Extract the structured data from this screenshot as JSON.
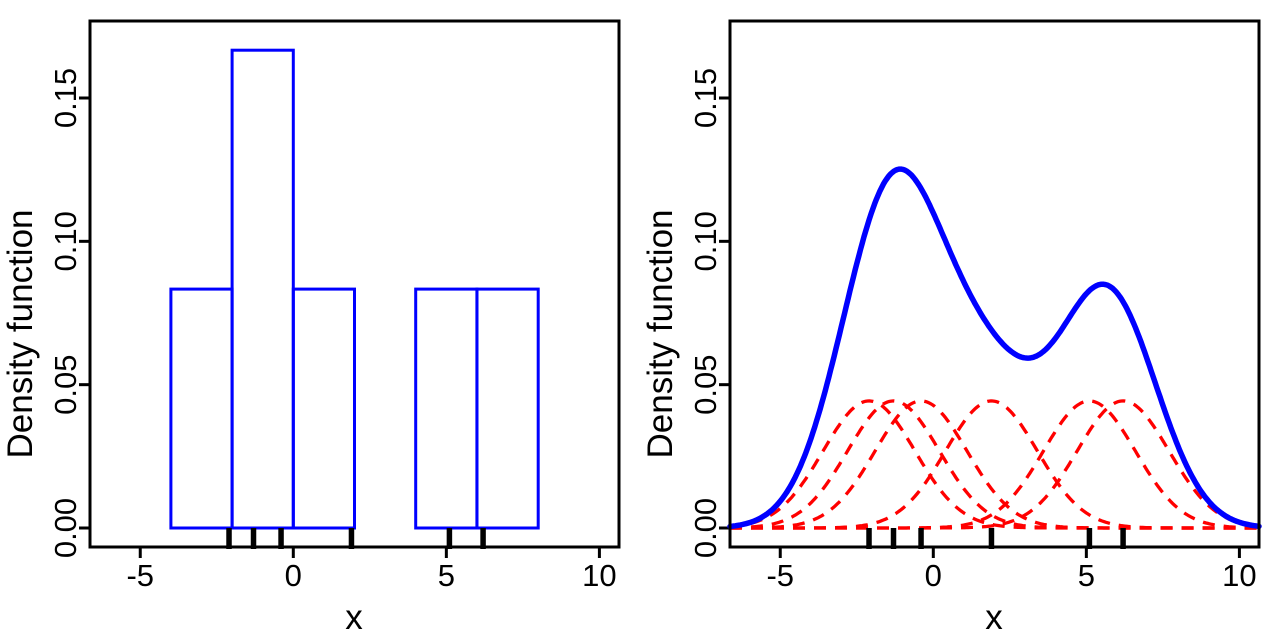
{
  "figure": {
    "background": "#ffffff",
    "axis_color": "#000000",
    "rug_color": "#000000"
  },
  "chart_data": [
    {
      "type": "bar",
      "subtype": "histogram",
      "title": "",
      "xlabel": "x",
      "ylabel": "Density function",
      "xlim": [
        -6.64,
        10.64
      ],
      "ylim": [
        -0.0068,
        0.1768
      ],
      "x_ticks": [
        -5,
        0,
        5,
        10
      ],
      "x_tick_labels": [
        "-5",
        "0",
        "5",
        "10"
      ],
      "y_ticks": [
        0,
        0.05,
        0.1,
        0.15
      ],
      "y_tick_labels": [
        "0.00",
        "0.05",
        "0.10",
        "0.15"
      ],
      "grid": "off",
      "legend": "none",
      "breaks": [
        -4,
        -2,
        0,
        2,
        4,
        6,
        8
      ],
      "densities": [
        0.08333,
        0.16667,
        0.08333,
        0,
        0.08333,
        0.08333
      ],
      "rug_points": [
        -2.1,
        -1.3,
        -0.4,
        1.9,
        5.1,
        6.2
      ],
      "colors": {
        "bar_outline": "#0000ff",
        "bar_fill": "none",
        "rug": "#000000"
      }
    },
    {
      "type": "line",
      "subtype": "kernel-density-estimate",
      "title": "",
      "xlabel": "x",
      "ylabel": "Density function",
      "xlim": [
        -6.64,
        10.64
      ],
      "ylim": [
        -0.0068,
        0.1768
      ],
      "x_ticks": [
        -5,
        0,
        5,
        10
      ],
      "x_tick_labels": [
        "-5",
        "0",
        "5",
        "10"
      ],
      "y_ticks": [
        0,
        0.05,
        0.1,
        0.15
      ],
      "y_tick_labels": [
        "0.00",
        "0.05",
        "0.10",
        "0.15"
      ],
      "grid": "off",
      "legend": "none",
      "data_points": [
        -2.1,
        -1.3,
        -0.4,
        1.9,
        5.1,
        6.2
      ],
      "kernel": "gaussian",
      "bandwidth": 1.5,
      "series": [
        {
          "name": "kde-sum",
          "color": "#0000ff",
          "style": "solid",
          "peaks": [
            {
              "x": -1.1,
              "y": 0.125
            },
            {
              "x": 5.65,
              "y": 0.085
            }
          ],
          "trough": {
            "x": 3.1,
            "y": 0.059
          }
        },
        {
          "name": "individual-kernels",
          "color": "#ff0000",
          "style": "dashed",
          "count": 6,
          "peak_height": 0.0443
        }
      ],
      "rug_points": [
        -2.1,
        -1.3,
        -0.4,
        1.9,
        5.1,
        6.2
      ],
      "colors": {
        "kde": "#0000ff",
        "kernels": "#ff0000",
        "rug": "#000000"
      }
    }
  ]
}
